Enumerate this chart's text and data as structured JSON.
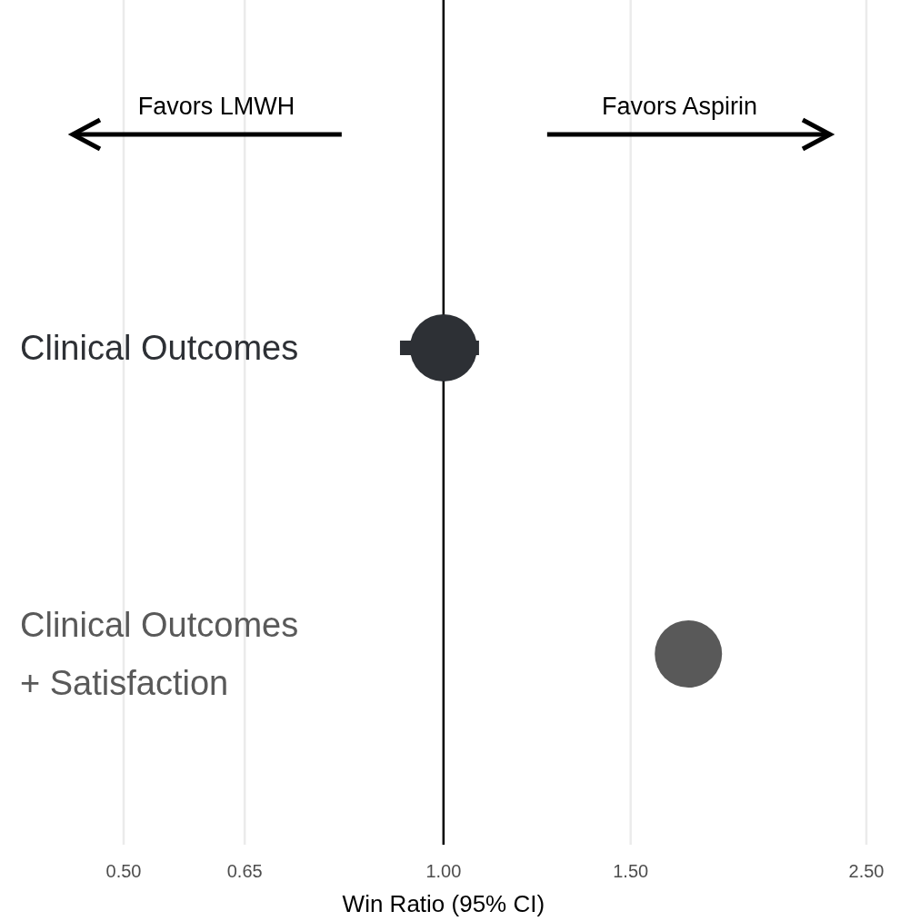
{
  "chart_data": {
    "type": "scatter",
    "xlabel": "Win Ratio (95% CI)",
    "log": "x",
    "categories": [
      "Clinical Outcomes",
      "Clinical Outcomes\n+ Satisfaction"
    ],
    "values": [
      1.0,
      1.7
    ],
    "errors": [
      [
        0.91,
        1.08
      ],
      null
    ],
    "colors": [
      "#2d3035",
      "#595959"
    ],
    "marker": "circle",
    "grid": "x",
    "orientation": "horizontal",
    "xlim": [
      0.5,
      2.5
    ],
    "xticks": [
      {
        "value": 0.5,
        "label": "0.50"
      },
      {
        "value": 0.65,
        "label": "0.65"
      },
      {
        "value": 1,
        "label": "1.00"
      },
      {
        "value": 1.5,
        "label": "1.50"
      },
      {
        "value": 2.5,
        "label": "2.50"
      }
    ],
    "ref_lines": [
      {
        "axis": "x",
        "value": 1,
        "color": "#000000"
      }
    ],
    "annotations": [
      "Favors LMWH",
      "Favors Aspirin"
    ]
  }
}
